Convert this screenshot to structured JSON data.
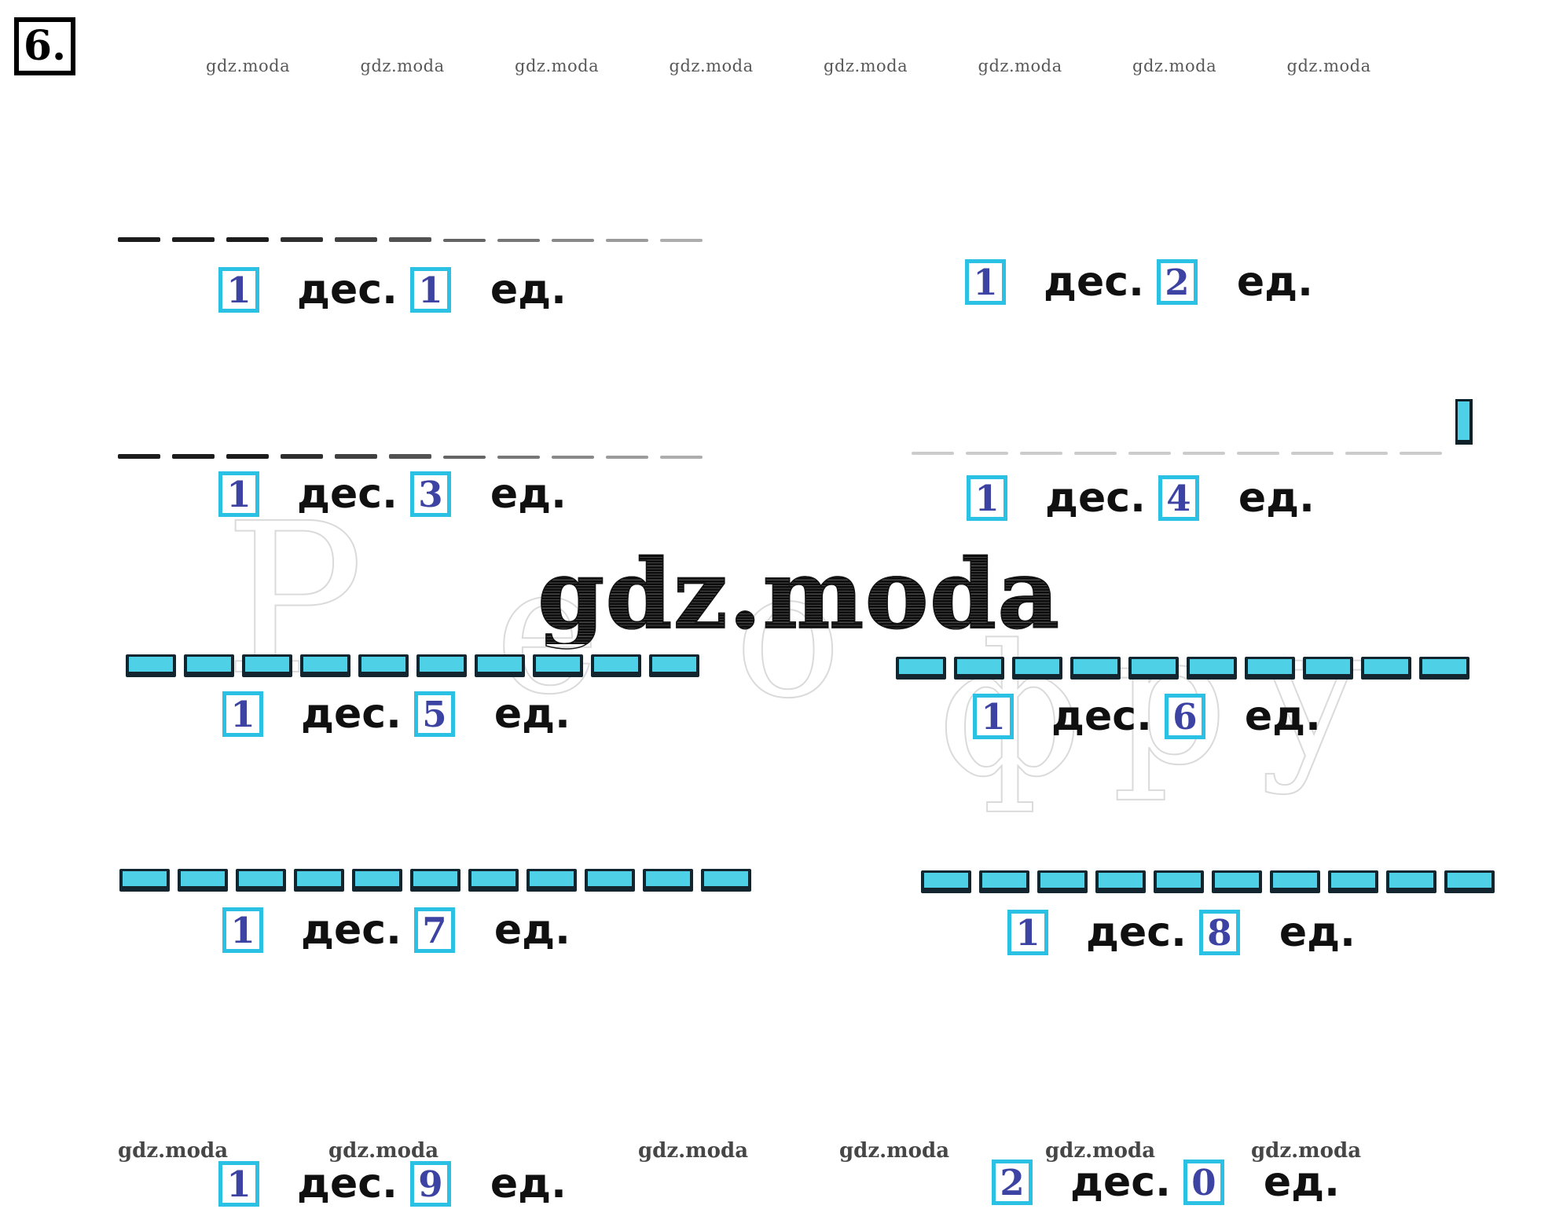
{
  "task_number": "6.",
  "center_watermark": "gdz.moda",
  "top_watermarks": [
    "gdz.moda",
    "gdz.moda",
    "gdz.moda",
    "gdz.moda",
    "gdz.moda",
    "gdz.moda",
    "gdz.moda",
    "gdz.moda"
  ],
  "bottom_watermarks": [
    "gdz.moda",
    "gdz.moda",
    "gdz.moda",
    "gdz.moda",
    "gdz.moda",
    "gdz.moda"
  ],
  "faint_fragments": [
    "Р",
    "е",
    "о",
    "ф",
    "р",
    "у"
  ],
  "labels": {
    "tens": "дес.",
    "units": "ед."
  },
  "problems": [
    {
      "tens": "1",
      "units": "1",
      "sticks": {
        "type": "black-dashes",
        "count": 11
      }
    },
    {
      "tens": "1",
      "units": "2",
      "sticks": {
        "type": "none",
        "count": 0
      }
    },
    {
      "tens": "1",
      "units": "3",
      "sticks": {
        "type": "black-dashes",
        "count": 11
      }
    },
    {
      "tens": "1",
      "units": "4",
      "sticks": {
        "type": "faint-dashes",
        "count": 10
      }
    },
    {
      "tens": "1",
      "units": "5",
      "sticks": {
        "type": "cyan-sticks",
        "count": 10
      }
    },
    {
      "tens": "1",
      "units": "6",
      "sticks": {
        "type": "cyan-sticks",
        "count": 10
      }
    },
    {
      "tens": "1",
      "units": "7",
      "sticks": {
        "type": "cyan-sticks",
        "count": 11
      }
    },
    {
      "tens": "1",
      "units": "8",
      "sticks": {
        "type": "cyan-sticks",
        "count": 10
      }
    },
    {
      "tens": "1",
      "units": "9",
      "sticks": {
        "type": "none",
        "count": 0
      }
    },
    {
      "tens": "2",
      "units": "0",
      "sticks": {
        "type": "none",
        "count": 0
      }
    }
  ],
  "colors": {
    "stick_fill": "#4ed0e6",
    "stick_border": "#13262f",
    "box_border": "#2bc1e4",
    "digit": "#3d43a2",
    "text": "#101010",
    "dash": "#1c1c1c",
    "faint_dash": "#cccccc",
    "watermark": "#161616",
    "faint_letters": "#cbcbcb"
  }
}
